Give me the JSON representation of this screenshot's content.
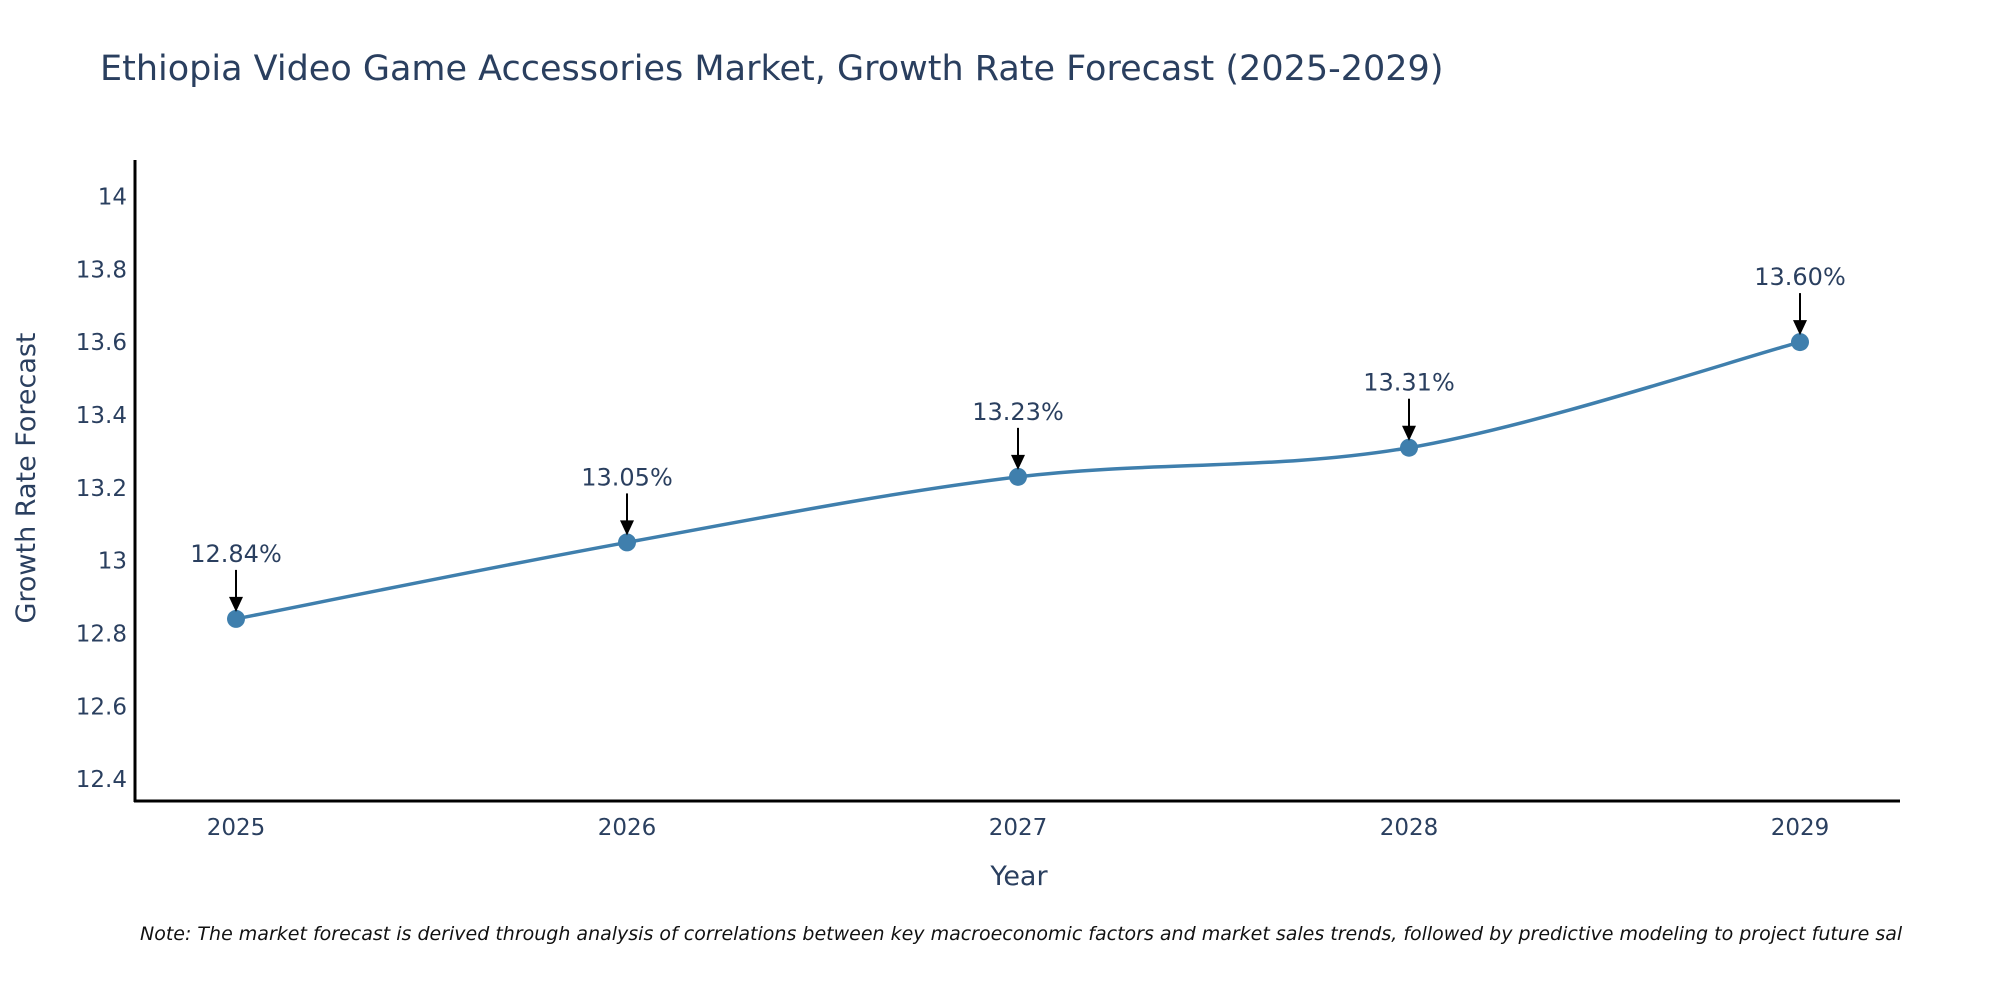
{
  "chart_data": {
    "type": "line",
    "title": "Ethiopia Video Game Accessories Market, Growth Rate Forecast (2025-2029)",
    "xlabel": "Year",
    "ylabel": "Growth Rate Forecast",
    "x": [
      "2025",
      "2026",
      "2027",
      "2028",
      "2029"
    ],
    "values": [
      12.84,
      13.05,
      13.23,
      13.31,
      13.6
    ],
    "data_labels": [
      "12.84%",
      "13.05%",
      "13.23%",
      "13.31%",
      "13.60%"
    ],
    "ylim": [
      12.34,
      14.1
    ],
    "yticks": [
      12.4,
      12.6,
      12.8,
      13,
      13.2,
      13.4,
      13.6,
      13.8,
      14
    ],
    "ytick_labels": [
      "12.4",
      "12.6",
      "12.8",
      "13",
      "13.2",
      "13.4",
      "13.6",
      "13.8",
      "14"
    ],
    "grid": false,
    "line_color": "#3f7fad",
    "marker_color": "#3f7fad",
    "annotation_arrow_color": "#000000",
    "note": "Note: The market forecast is derived through analysis of correlations between key macroeconomic factors and market sales trends, followed by predictive modeling to project future sal"
  }
}
